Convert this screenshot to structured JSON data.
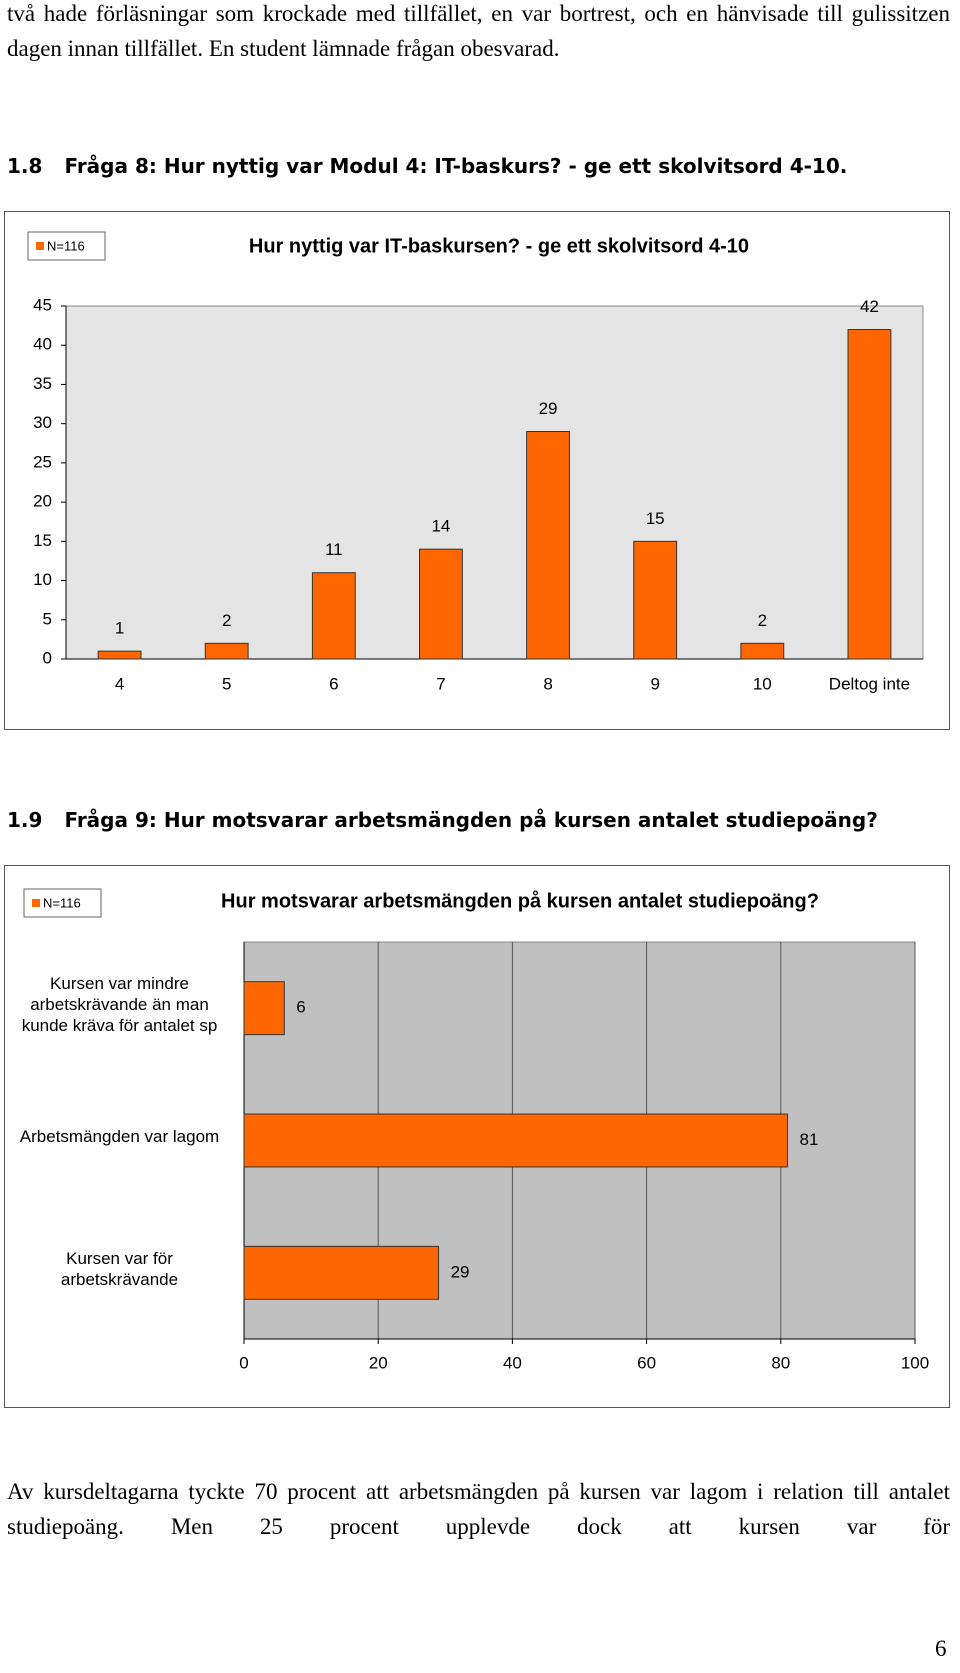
{
  "paragraphs": [
    "två hade förläsningar som krockade med tillfället, en var bortrest, och en hänvisade till gulissitzen dagen innan tillfället. En student lämnade frågan obesvarad.",
    "Av kursdeltagarna tyckte 70 procent att arbetsmängden på kursen var lagom i relation till antalet studiepoäng. Men 25 procent upplevde dock att kursen var för"
  ],
  "headings": [
    {
      "number": "1.8",
      "text": "Fråga 8: Hur nyttig var Modul 4: IT-baskurs? - ge ett skolvitsord 4-10."
    },
    {
      "number": "1.9",
      "text": "Fråga 9: Hur motsvarar arbetsmängden på kursen antalet studiepoäng?"
    }
  ],
  "chart_data": [
    {
      "type": "bar",
      "title": "Hur nyttig var IT-baskursen? - ge ett skolvitsord 4-10",
      "annotation": "N=116",
      "categories": [
        "4",
        "5",
        "6",
        "7",
        "8",
        "9",
        "10",
        "Deltog inte"
      ],
      "values": [
        1,
        2,
        11,
        14,
        29,
        15,
        2,
        42
      ],
      "color": "#ff6600",
      "ylim": [
        0,
        45
      ],
      "yticks": [
        0,
        5,
        10,
        15,
        20,
        25,
        30,
        35,
        40,
        45
      ],
      "grid": false,
      "plot_background": "#e4e4e4"
    },
    {
      "type": "barh",
      "title": "Hur motsvarar arbetsmängden på kursen antalet studiepoäng?",
      "annotation": "N=116",
      "categories": [
        "Kursen var mindre arbetskrävande än man kunde kräva för antalet sp",
        "Arbetsmängden var lagom",
        "Kursen var för arbetskrävande"
      ],
      "values": [
        6,
        81,
        29
      ],
      "color": "#ff6600",
      "xlim": [
        0,
        100
      ],
      "xticks": [
        0,
        20,
        40,
        60,
        80,
        100
      ],
      "grid": true,
      "plot_background": "#c0c0c0"
    }
  ],
  "page_number": "6"
}
